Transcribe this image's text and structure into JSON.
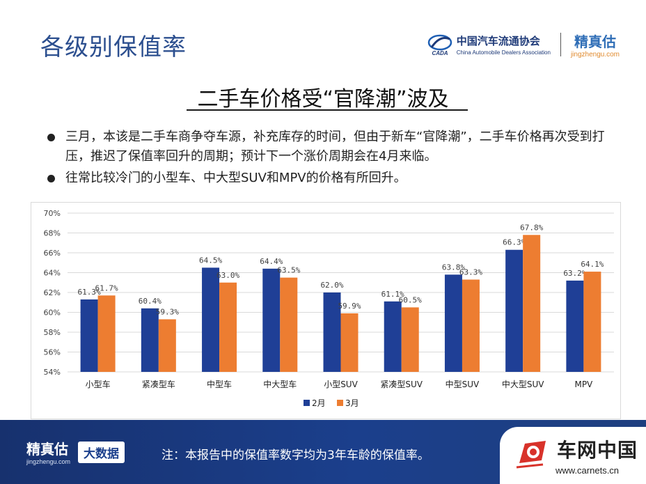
{
  "header": {
    "title": "各级别保值率",
    "cada_name_cn": "中国汽车流通协会",
    "cada_name_en": "China Automobile Dealers Association",
    "cada_emblem_text": "CADA",
    "jzg_name": "精真估",
    "jzg_url": "jingzhengu.com"
  },
  "subtitle": "二手车价格受“官降潮”波及",
  "bullets": [
    "三月，本该是二手车商争夺车源，补充库存的时间，但由于新车“官降潮”，二手车价格再次受到打压，推迟了保值率回升的周期；预计下一个涨价周期会在4月来临。",
    "往常比较冷门的小型车、中大型SUV和MPV的价格有所回升。"
  ],
  "chart_data": {
    "type": "bar",
    "categories": [
      "小型车",
      "紧凑型车",
      "中型车",
      "中大型车",
      "小型SUV",
      "紧凑型SUV",
      "中型SUV",
      "中大型SUV",
      "MPV"
    ],
    "series": [
      {
        "name": "2月",
        "values": [
          61.3,
          60.4,
          64.5,
          64.4,
          62.0,
          61.1,
          63.8,
          66.3,
          63.2
        ],
        "color": "#1f3f96"
      },
      {
        "name": "3月",
        "values": [
          61.7,
          59.3,
          63.0,
          63.5,
          59.9,
          60.5,
          63.3,
          67.8,
          64.1
        ],
        "color": "#ed7d31"
      }
    ],
    "ylim": [
      54,
      70
    ],
    "yticks": [
      "54%",
      "56%",
      "58%",
      "60%",
      "62%",
      "64%",
      "66%",
      "68%",
      "70%"
    ],
    "value_suffix": "%",
    "grid": true,
    "legend_position": "bottom"
  },
  "footer": {
    "logo_name": "精真估",
    "logo_url": "jingzhengu.com",
    "badge": "大数据",
    "note": "注：本报告中的保值率数字均为3年车龄的保值率。",
    "carnets_name": "车网中国",
    "carnets_url": "www.carnets.cn"
  }
}
